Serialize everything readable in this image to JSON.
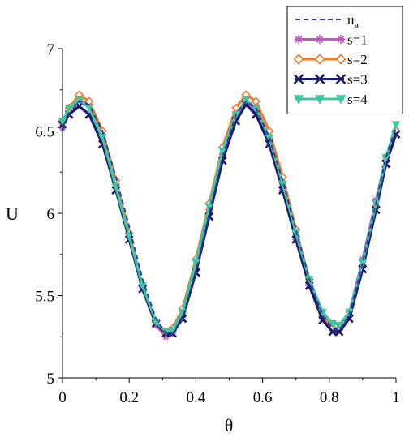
{
  "chart_data": {
    "type": "line",
    "title": "",
    "xlabel": "θ",
    "ylabel": "U",
    "xlim": [
      0,
      1
    ],
    "ylim": [
      5,
      7
    ],
    "xticks": [
      "0",
      "0.2",
      "0.4",
      "0.6",
      "0.8",
      "1"
    ],
    "yticks": [
      "5",
      "5.5",
      "6",
      "6.5",
      "7"
    ],
    "grid": false,
    "legend_position": "top-right",
    "series": [
      {
        "name": "u",
        "subscript": "a",
        "color": "#2b3ea8",
        "marker": "none",
        "dash": "dashed",
        "x": [
          0,
          0.02,
          0.05,
          0.08,
          0.12,
          0.16,
          0.2,
          0.24,
          0.28,
          0.31,
          0.33,
          0.36,
          0.4,
          0.44,
          0.48,
          0.52,
          0.55,
          0.58,
          0.62,
          0.66,
          0.7,
          0.74,
          0.78,
          0.81,
          0.83,
          0.86,
          0.9,
          0.94,
          0.97,
          1
        ],
        "values": [
          6.5,
          6.6,
          6.68,
          6.66,
          6.5,
          6.22,
          5.92,
          5.6,
          5.36,
          5.27,
          5.27,
          5.36,
          5.65,
          6.0,
          6.34,
          6.6,
          6.68,
          6.64,
          6.46,
          6.2,
          5.9,
          5.6,
          5.38,
          5.3,
          5.29,
          5.38,
          5.7,
          6.06,
          6.34,
          6.52
        ]
      },
      {
        "name": "s=1",
        "color": "#c154c1",
        "marker": "asterisk",
        "dash": "solid",
        "x": [
          0,
          0.02,
          0.05,
          0.08,
          0.12,
          0.16,
          0.2,
          0.24,
          0.28,
          0.31,
          0.33,
          0.36,
          0.4,
          0.44,
          0.48,
          0.52,
          0.55,
          0.58,
          0.62,
          0.66,
          0.7,
          0.74,
          0.78,
          0.81,
          0.83,
          0.86,
          0.9,
          0.94,
          0.97,
          1
        ],
        "values": [
          6.52,
          6.62,
          6.69,
          6.66,
          6.48,
          6.18,
          5.86,
          5.54,
          5.32,
          5.25,
          5.27,
          5.38,
          5.66,
          6.02,
          6.36,
          6.6,
          6.68,
          6.62,
          6.42,
          6.14,
          5.84,
          5.56,
          5.36,
          5.29,
          5.29,
          5.4,
          5.72,
          6.08,
          6.34,
          6.5
        ]
      },
      {
        "name": "s=2",
        "color": "#f07a2a",
        "marker": "diamond",
        "dash": "solid",
        "x": [
          0,
          0.02,
          0.05,
          0.08,
          0.12,
          0.16,
          0.2,
          0.24,
          0.28,
          0.31,
          0.33,
          0.36,
          0.4,
          0.44,
          0.48,
          0.52,
          0.55,
          0.58,
          0.62,
          0.66,
          0.7,
          0.74,
          0.78,
          0.81,
          0.83,
          0.86,
          0.9,
          0.94,
          0.97,
          1
        ],
        "values": [
          6.55,
          6.64,
          6.72,
          6.68,
          6.5,
          6.2,
          5.88,
          5.56,
          5.34,
          5.28,
          5.3,
          5.42,
          5.72,
          6.06,
          6.4,
          6.64,
          6.72,
          6.68,
          6.5,
          6.22,
          5.9,
          5.6,
          5.38,
          5.3,
          5.3,
          5.38,
          5.68,
          6.04,
          6.32,
          6.5
        ]
      },
      {
        "name": "s=3",
        "color": "#1c1c6e",
        "marker": "x",
        "dash": "solid",
        "x": [
          0,
          0.02,
          0.05,
          0.08,
          0.12,
          0.16,
          0.2,
          0.24,
          0.28,
          0.31,
          0.33,
          0.36,
          0.4,
          0.44,
          0.48,
          0.52,
          0.55,
          0.58,
          0.62,
          0.66,
          0.7,
          0.74,
          0.78,
          0.81,
          0.83,
          0.86,
          0.9,
          0.94,
          0.97,
          1
        ],
        "values": [
          6.54,
          6.6,
          6.65,
          6.6,
          6.42,
          6.14,
          5.84,
          5.54,
          5.33,
          5.27,
          5.27,
          5.36,
          5.64,
          5.98,
          6.32,
          6.56,
          6.66,
          6.6,
          6.42,
          6.14,
          5.84,
          5.56,
          5.35,
          5.28,
          5.28,
          5.36,
          5.66,
          6.02,
          6.3,
          6.48
        ]
      },
      {
        "name": "s=4",
        "color": "#3fc6a2",
        "marker": "triangle-down",
        "dash": "solid",
        "x": [
          0,
          0.02,
          0.05,
          0.08,
          0.12,
          0.16,
          0.2,
          0.24,
          0.28,
          0.31,
          0.33,
          0.36,
          0.4,
          0.44,
          0.48,
          0.52,
          0.55,
          0.58,
          0.62,
          0.66,
          0.7,
          0.74,
          0.78,
          0.81,
          0.83,
          0.86,
          0.9,
          0.94,
          0.97,
          1
        ],
        "values": [
          6.56,
          6.64,
          6.69,
          6.64,
          6.46,
          6.16,
          5.86,
          5.56,
          5.34,
          5.28,
          5.29,
          5.4,
          5.7,
          6.04,
          6.38,
          6.6,
          6.69,
          6.64,
          6.46,
          6.18,
          5.88,
          5.6,
          5.4,
          5.33,
          5.32,
          5.4,
          5.7,
          6.06,
          6.34,
          6.54
        ]
      }
    ]
  }
}
